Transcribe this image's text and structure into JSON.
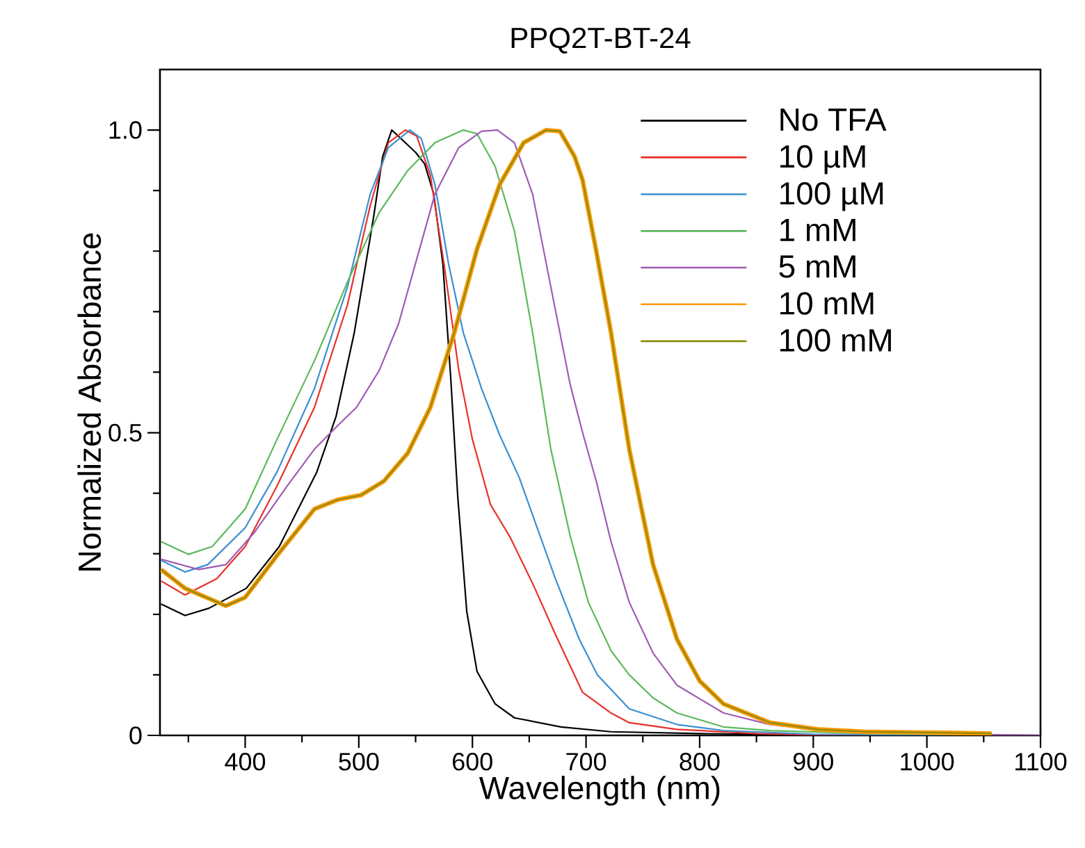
{
  "chart_data": {
    "type": "line",
    "title": "PPQ2T-BT-24",
    "xlabel": "Wavelength (nm)",
    "ylabel": "Normalized Absorbance",
    "xlim": [
      325,
      1100
    ],
    "ylim": [
      0,
      1.1
    ],
    "xticks": [
      {
        "value": 350,
        "label": null
      },
      400,
      {
        "value": 450,
        "label": null
      },
      500,
      {
        "value": 550,
        "label": null
      },
      600,
      {
        "value": 650,
        "label": null
      },
      700,
      {
        "value": 750,
        "label": null
      },
      800,
      {
        "value": 850,
        "label": null
      },
      900,
      {
        "value": 950,
        "label": null
      },
      1000,
      {
        "value": 1050,
        "label": null
      },
      1100
    ],
    "yticks": [
      0,
      {
        "value": 0.1,
        "label": null
      },
      {
        "value": 0.2,
        "label": null
      },
      {
        "value": 0.3,
        "label": null
      },
      {
        "value": 0.4,
        "label": null
      },
      0.5,
      {
        "value": 0.6,
        "label": null
      },
      {
        "value": 0.7,
        "label": null
      },
      {
        "value": 0.8,
        "label": null
      },
      {
        "value": 0.9,
        "label": null
      },
      {
        "value": 1.0,
        "label": "1.0"
      }
    ],
    "grid": false,
    "legend": "top right",
    "marker": "none",
    "line_style": "solid",
    "series": [
      {
        "name": "No TFA",
        "color": "#000000",
        "x": [
          326,
          347,
          368,
          401,
          430,
          463,
          480,
          496,
          513,
          521,
          529,
          537,
          550,
          558,
          566,
          574,
          581,
          587,
          595,
          604,
          620,
          637,
          678,
          722,
          800,
          900,
          1100
        ],
        "values": [
          0.217,
          0.198,
          0.21,
          0.243,
          0.312,
          0.435,
          0.527,
          0.665,
          0.856,
          0.956,
          1.0,
          0.986,
          0.963,
          0.944,
          0.894,
          0.779,
          0.588,
          0.397,
          0.205,
          0.106,
          0.052,
          0.029,
          0.014,
          0.006,
          0.003,
          0.001,
          0
        ]
      },
      {
        "name": "10 µM",
        "color": "#e8312a",
        "x": [
          326,
          347,
          375,
          400,
          428,
          461,
          490,
          510,
          526,
          541,
          551,
          563,
          575,
          588,
          600,
          616,
          633,
          653,
          673,
          697,
          722,
          738,
          780,
          850,
          900,
          1100
        ],
        "values": [
          0.255,
          0.232,
          0.259,
          0.312,
          0.412,
          0.542,
          0.711,
          0.875,
          0.979,
          1.0,
          0.99,
          0.925,
          0.779,
          0.603,
          0.489,
          0.381,
          0.328,
          0.251,
          0.167,
          0.071,
          0.037,
          0.021,
          0.01,
          0.003,
          0.001,
          0
        ]
      },
      {
        "name": "100 µM",
        "color": "#3b8fcf",
        "x": [
          326,
          347,
          367,
          400,
          428,
          461,
          490,
          510,
          526,
          545,
          555,
          567,
          579,
          592,
          608,
          624,
          641,
          657,
          673,
          694,
          710,
          738,
          780,
          821,
          900,
          1100
        ],
        "values": [
          0.289,
          0.27,
          0.282,
          0.343,
          0.435,
          0.573,
          0.741,
          0.894,
          0.971,
          1.0,
          0.986,
          0.91,
          0.779,
          0.665,
          0.573,
          0.496,
          0.427,
          0.343,
          0.259,
          0.159,
          0.1,
          0.044,
          0.018,
          0.008,
          0.002,
          0
        ]
      },
      {
        "name": "1 mM",
        "color": "#5cb85c",
        "x": [
          326,
          350,
          371,
          400,
          428,
          461,
          490,
          518,
          543,
          567,
          592,
          604,
          620,
          637,
          653,
          669,
          686,
          702,
          722,
          738,
          759,
          780,
          821,
          862,
          950,
          1100
        ],
        "values": [
          0.32,
          0.299,
          0.312,
          0.374,
          0.489,
          0.619,
          0.749,
          0.864,
          0.933,
          0.979,
          1.0,
          0.994,
          0.94,
          0.833,
          0.665,
          0.473,
          0.33,
          0.22,
          0.14,
          0.1,
          0.062,
          0.037,
          0.014,
          0.008,
          0.003,
          0
        ]
      },
      {
        "name": "5 mM",
        "color": "#a05bb4",
        "x": [
          326,
          359,
          383,
          408,
          437,
          461,
          481,
          498,
          518,
          535,
          551,
          567,
          588,
          608,
          622,
          637,
          653,
          669,
          686,
          697,
          709,
          722,
          738,
          759,
          780,
          821,
          862,
          904,
          950,
          1100
        ],
        "values": [
          0.291,
          0.274,
          0.282,
          0.335,
          0.412,
          0.473,
          0.511,
          0.542,
          0.603,
          0.68,
          0.787,
          0.894,
          0.971,
          0.998,
          1.0,
          0.979,
          0.894,
          0.741,
          0.58,
          0.5,
          0.42,
          0.32,
          0.22,
          0.136,
          0.083,
          0.037,
          0.018,
          0.01,
          0.005,
          0
        ]
      },
      {
        "name": "10 mM",
        "color": "#ff9900",
        "x": [
          326,
          347,
          383,
          400,
          428,
          461,
          481,
          502,
          522,
          543,
          563,
          584,
          604,
          624,
          645,
          665,
          677,
          690,
          697,
          709,
          722,
          738,
          759,
          780,
          800,
          821,
          862,
          904,
          945,
          986,
          1028,
          1057
        ],
        "values": [
          0.274,
          0.243,
          0.214,
          0.228,
          0.297,
          0.374,
          0.389,
          0.397,
          0.42,
          0.466,
          0.542,
          0.665,
          0.803,
          0.91,
          0.979,
          1.0,
          0.998,
          0.956,
          0.917,
          0.8,
          0.665,
          0.473,
          0.282,
          0.159,
          0.09,
          0.052,
          0.021,
          0.01,
          0.006,
          0.005,
          0.004,
          0.003
        ]
      },
      {
        "name": "100 mM",
        "color": "#8c8c10",
        "x": [
          326,
          347,
          383,
          400,
          428,
          461,
          481,
          502,
          522,
          543,
          563,
          584,
          604,
          624,
          645,
          665,
          677,
          690,
          697,
          709,
          722,
          738,
          759,
          780,
          800,
          821,
          862,
          904,
          945,
          986,
          1028,
          1057
        ],
        "values": [
          0.274,
          0.243,
          0.214,
          0.228,
          0.297,
          0.374,
          0.389,
          0.397,
          0.42,
          0.466,
          0.542,
          0.665,
          0.803,
          0.91,
          0.979,
          1.0,
          0.998,
          0.956,
          0.917,
          0.8,
          0.665,
          0.473,
          0.282,
          0.159,
          0.09,
          0.052,
          0.021,
          0.01,
          0.006,
          0.005,
          0.004,
          0.003
        ]
      }
    ]
  }
}
